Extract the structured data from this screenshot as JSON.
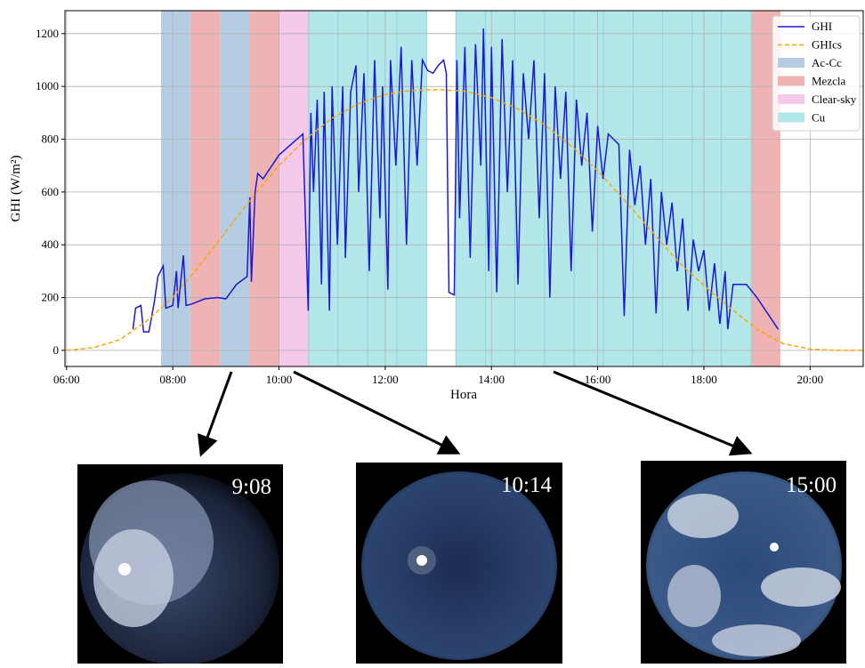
{
  "chart_data": {
    "type": "line",
    "x_label": "Hora",
    "y_label": "GHI (W/m²)",
    "xlim": [
      5.97,
      21.0
    ],
    "ylim": [
      -61,
      1287
    ],
    "xticks": [
      {
        "value": 6,
        "label": "06:00"
      },
      {
        "value": 8,
        "label": "08:00"
      },
      {
        "value": 10,
        "label": "10:00"
      },
      {
        "value": 12,
        "label": "12:00"
      },
      {
        "value": 14,
        "label": "14:00"
      },
      {
        "value": 16,
        "label": "16:00"
      },
      {
        "value": 18,
        "label": "18:00"
      },
      {
        "value": 20,
        "label": "20:00"
      }
    ],
    "yticks": [
      0,
      200,
      400,
      600,
      800,
      1000,
      1200
    ],
    "grid": true,
    "legend": "upper right",
    "series": [
      {
        "name": "GHI",
        "color": "#1a1ad4",
        "linestyle": "solid",
        "x": [
          7.25,
          7.3,
          7.4,
          7.45,
          7.55,
          7.65,
          7.72,
          7.82,
          7.87,
          8.0,
          8.07,
          8.1,
          8.2,
          8.25,
          8.35,
          8.6,
          8.85,
          9.0,
          9.2,
          9.4,
          9.45,
          9.48,
          9.55,
          9.6,
          9.7,
          10.0,
          10.45,
          10.55,
          10.6,
          10.65,
          10.72,
          10.8,
          10.85,
          10.95,
          11.0,
          11.1,
          11.2,
          11.25,
          11.35,
          11.45,
          11.5,
          11.6,
          11.7,
          11.8,
          11.9,
          11.95,
          12.05,
          12.1,
          12.2,
          12.3,
          12.4,
          12.5,
          12.6,
          12.7,
          12.8,
          12.9,
          13.0,
          13.1,
          13.15,
          13.2,
          13.3,
          13.35,
          13.4,
          13.5,
          13.6,
          13.7,
          13.8,
          13.85,
          13.95,
          14.0,
          14.1,
          14.2,
          14.3,
          14.4,
          14.5,
          14.6,
          14.7,
          14.8,
          14.9,
          15.0,
          15.1,
          15.2,
          15.3,
          15.4,
          15.5,
          15.6,
          15.7,
          15.8,
          15.9,
          16.0,
          16.1,
          16.2,
          16.4,
          16.5,
          16.6,
          16.7,
          16.8,
          16.9,
          17.0,
          17.1,
          17.2,
          17.3,
          17.4,
          17.5,
          17.6,
          17.7,
          17.8,
          17.9,
          18.0,
          18.1,
          18.2,
          18.3,
          18.4,
          18.45,
          18.55,
          18.8,
          19.0,
          19.4
        ],
        "values": [
          80,
          160,
          170,
          70,
          70,
          180,
          280,
          320,
          160,
          170,
          300,
          160,
          360,
          170,
          175,
          195,
          200,
          195,
          250,
          280,
          580,
          260,
          600,
          670,
          650,
          740,
          820,
          150,
          900,
          600,
          950,
          250,
          980,
          150,
          1000,
          400,
          1000,
          350,
          980,
          1080,
          600,
          1050,
          300,
          1100,
          500,
          1000,
          230,
          1100,
          700,
          1150,
          400,
          1100,
          700,
          1100,
          1060,
          1050,
          1080,
          1100,
          1050,
          220,
          210,
          1100,
          500,
          1150,
          350,
          1160,
          700,
          1220,
          300,
          1150,
          220,
          1180,
          600,
          1100,
          250,
          1050,
          800,
          1100,
          500,
          1050,
          200,
          1000,
          650,
          980,
          300,
          950,
          700,
          900,
          450,
          850,
          650,
          820,
          780,
          130,
          760,
          550,
          700,
          400,
          650,
          140,
          600,
          400,
          560,
          300,
          500,
          150,
          420,
          300,
          380,
          150,
          330,
          100,
          300,
          80,
          250,
          250,
          200,
          80
        ]
      },
      {
        "name": "GHIcs",
        "color": "#ffa500",
        "linestyle": "dashed",
        "x": [
          6.0,
          6.5,
          7.0,
          7.5,
          8.0,
          8.5,
          9.0,
          9.5,
          10.0,
          10.5,
          11.0,
          11.5,
          12.0,
          12.5,
          13.0,
          13.5,
          14.0,
          14.5,
          15.0,
          15.5,
          16.0,
          16.5,
          17.0,
          17.5,
          18.0,
          18.5,
          19.0,
          19.5,
          20.0,
          20.5,
          21.0
        ],
        "values": [
          0,
          10,
          40,
          110,
          200,
          320,
          450,
          580,
          700,
          800,
          880,
          935,
          970,
          985,
          988,
          982,
          958,
          915,
          855,
          775,
          680,
          570,
          455,
          340,
          245,
          160,
          80,
          25,
          5,
          0,
          0
        ]
      }
    ],
    "bands": [
      {
        "name": "Ac-Cc",
        "color": "#b4cde3",
        "spans": [
          [
            7.78,
            8.33
          ],
          [
            8.89,
            9.44
          ]
        ]
      },
      {
        "name": "Mezcla",
        "color": "#efb3b3",
        "spans": [
          [
            8.33,
            8.89
          ],
          [
            9.44,
            10.0
          ],
          [
            18.89,
            19.44
          ]
        ]
      },
      {
        "name": "Clear-sky",
        "color": "#f5c9ea",
        "spans": [
          [
            10.0,
            10.56
          ]
        ]
      },
      {
        "name": "Cu",
        "color": "#b3e7ea",
        "spans": [
          [
            10.56,
            11.11
          ],
          [
            11.11,
            11.67
          ],
          [
            11.67,
            12.22
          ],
          [
            12.22,
            12.78
          ],
          [
            13.33,
            13.89
          ],
          [
            13.89,
            14.44
          ],
          [
            14.44,
            15.0
          ],
          [
            15.0,
            15.56
          ],
          [
            15.56,
            16.11
          ],
          [
            16.11,
            16.67
          ],
          [
            16.67,
            17.22
          ],
          [
            17.22,
            17.78
          ],
          [
            17.78,
            18.33
          ],
          [
            18.33,
            18.89
          ]
        ]
      }
    ]
  },
  "photos": [
    "9:08",
    "10:14",
    "15:00"
  ]
}
